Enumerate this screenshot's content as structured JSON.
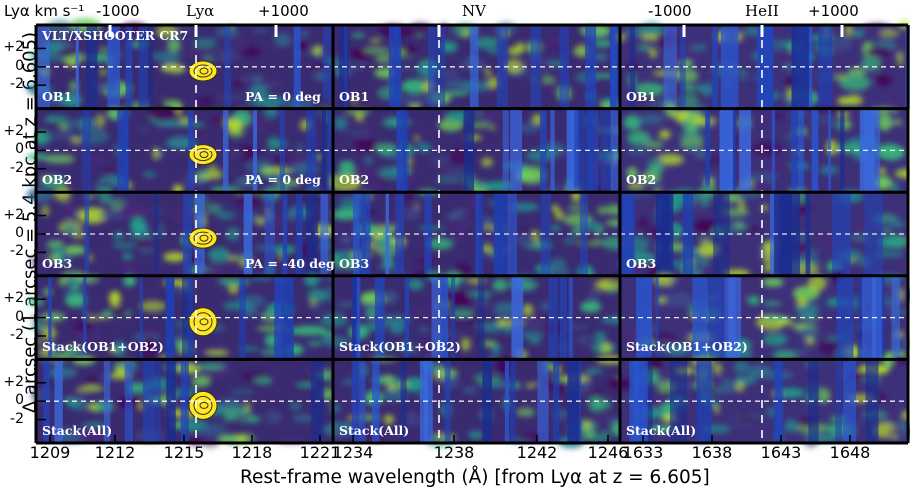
{
  "figure": {
    "top_axis": {
      "label": "Lyα km s⁻¹",
      "left_ticks": [
        "-1000",
        "Lyα",
        "+1000"
      ],
      "middle_line": "NV",
      "right_ticks": [
        "-1000",
        "HeII",
        "+1000"
      ]
    },
    "y_axis_label": "Δ arcsec (1 arcsec = 5.4 kpc at z = 6.605)",
    "x_axis_label": "Rest-frame wavelength (Å) [from Lyα at z = 6.605]",
    "y_ticks": [
      "+2",
      "0",
      "-2"
    ],
    "panel_title": "VLT/XSHOOTER CR7",
    "rows": [
      {
        "label": "OB1",
        "pa": "PA = 0 deg"
      },
      {
        "label": "OB2",
        "pa": "PA = 0 deg"
      },
      {
        "label": "OB3",
        "pa": "PA = -40 deg"
      },
      {
        "label": "Stack(OB1+OB2)",
        "pa": ""
      },
      {
        "label": "Stack(All)",
        "pa": ""
      }
    ],
    "columns": [
      {
        "name": "Lya",
        "x_ticks": [
          "1209",
          "1212",
          "1215",
          "1218",
          "1221"
        ]
      },
      {
        "name": "NV",
        "x_ticks": [
          "1234",
          "1238",
          "1242",
          "1246"
        ]
      },
      {
        "name": "HeII",
        "x_ticks": [
          "1633",
          "1638",
          "1643",
          "1648"
        ]
      }
    ],
    "colors": {
      "background": "#3b1f5a",
      "accent": "#fde725",
      "frame": "#000000"
    }
  }
}
